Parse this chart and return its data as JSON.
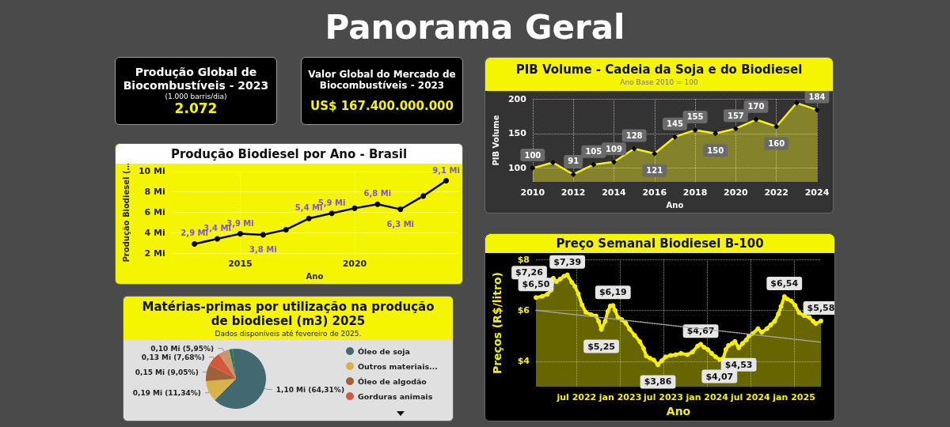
{
  "chart_data": [
    {
      "type": "other",
      "title": "Panorama Geral"
    },
    {
      "type": "other",
      "title": "Produção Global de Biocombustíveis - 2023",
      "subtitle": "(1.000 barris/dia)",
      "annotations": [
        "2.072"
      ]
    },
    {
      "type": "other",
      "title": "Valor Global do Mercado de Biocombustíveis - 2023",
      "annotations": [
        "US$ 167.400.000.000"
      ]
    },
    {
      "type": "area",
      "title": "PIB Volume - Cadeia da Soja e do Biodiesel",
      "subtitle": "Ano Base 2010 = 100",
      "xlabel": "Ano",
      "ylabel": "PIB Volume",
      "x": [
        2010,
        2011,
        2012,
        2013,
        2014,
        2015,
        2016,
        2017,
        2018,
        2019,
        2020,
        2021,
        2022,
        2023,
        2024
      ],
      "xlim": [
        2010,
        2024
      ],
      "xticks": [
        2010,
        2012,
        2014,
        2016,
        2018,
        2020,
        2022,
        2024
      ],
      "ylim": [
        80,
        200
      ],
      "yticks": [
        100,
        150,
        200
      ],
      "grid": true,
      "marker": "diamond",
      "series": [
        {
          "color": "#f5f020",
          "values": [
            100,
            108,
            91,
            105,
            109,
            128,
            121,
            145,
            155,
            150,
            157,
            170,
            160,
            194,
            184
          ],
          "value_labels": [
            "100",
            null,
            "91",
            "105",
            "109",
            "128",
            "121",
            "145",
            "155",
            "150",
            "157",
            "170",
            "160",
            null,
            "184"
          ]
        }
      ]
    },
    {
      "type": "line",
      "title": "Produção Biodiesel por Ano - Brasil",
      "xlabel": "Ano",
      "ylabel": "Produção Biodiesel (…",
      "x": [
        2013,
        2014,
        2015,
        2016,
        2017,
        2018,
        2019,
        2020,
        2021,
        2022,
        2023,
        2024
      ],
      "xlim": [
        2012,
        2024.5
      ],
      "xticks": [
        2015,
        2020
      ],
      "ylim": [
        2,
        10
      ],
      "yticks": [
        {
          "value": 2,
          "label": "2 Mi"
        },
        {
          "value": 4,
          "label": "4 Mi"
        },
        {
          "value": 6,
          "label": "6 Mi"
        },
        {
          "value": 8,
          "label": "8 Mi"
        },
        {
          "value": 10,
          "label": "10 Mi"
        }
      ],
      "grid": true,
      "marker": "circle",
      "series": [
        {
          "color": "#000000",
          "values": [
            2.9,
            3.4,
            3.9,
            3.8,
            4.3,
            5.4,
            5.9,
            6.4,
            6.8,
            6.3,
            7.6,
            9.1
          ],
          "value_labels": [
            "2,9 Mi",
            "3,4 Mi",
            "3,9 Mi",
            "3,8 Mi",
            null,
            "5,4 Mi",
            "5,9 Mi",
            null,
            "6,8 Mi",
            "6,3 Mi",
            null,
            "9,1 Mi"
          ]
        }
      ]
    },
    {
      "type": "pie",
      "title": "Matérias-primas por utilização na produção de biodiesel (m3) 2025",
      "subtitle": "Dados disponíveis até fevereiro de 2025.",
      "legend": "right",
      "categories": [
        "Óleo de soja",
        "Outros materiais...",
        "Óleo de algodão",
        "Gorduras animais",
        null,
        null
      ],
      "values": [
        64.31,
        11.34,
        9.05,
        7.68,
        5.95,
        1.67
      ],
      "colors": [
        "#426870",
        "#d8b24a",
        "#a0603a",
        "#d4583c",
        "#c9966a",
        "#1a7a5a"
      ],
      "value_labels": [
        "1,10 Mi (64,31%)",
        "0,19 Mi (11,34%)",
        "0,15 Mi (9,05%)",
        "0,13 Mi (7,68%)",
        "0,10 Mi (5,95%)",
        null
      ]
    },
    {
      "type": "area",
      "title": "Preço Semanal Biodiesel B-100",
      "xlabel": "Ano",
      "ylabel": "Preços (R$/litro)",
      "xlim": [
        "2022-01-11",
        "2025-04-24"
      ],
      "xticks": [
        {
          "value": "2022-07-01",
          "label": "jul 2022"
        },
        {
          "value": "2023-01-01",
          "label": "jan 2023"
        },
        {
          "value": "2023-07-01",
          "label": "jul 2023"
        },
        {
          "value": "2024-01-01",
          "label": "jan 2024"
        },
        {
          "value": "2024-07-01",
          "label": "jul 2024"
        },
        {
          "value": "2025-01-01",
          "label": "jan 2025"
        }
      ],
      "ylim": [
        3,
        8
      ],
      "yticks": [
        {
          "value": 4,
          "label": "$4"
        },
        {
          "value": 6,
          "label": "$6"
        },
        {
          "value": 8,
          "label": "$8"
        }
      ],
      "grid": true,
      "marker": "circle",
      "series": [
        {
          "color": "#f5f000",
          "x": [
            "2022-01-11",
            "2022-02-07",
            "2022-02-28",
            "2022-03-16",
            "2022-03-25",
            "2022-04-07",
            "2022-04-23",
            "2022-05-09",
            "2022-05-23",
            "2022-06-11",
            "2022-06-24",
            "2022-07-08",
            "2022-07-24",
            "2022-08-09",
            "2022-08-31",
            "2022-09-21",
            "2022-10-02",
            "2022-10-13",
            "2022-10-29",
            "2022-11-09",
            "2022-11-20",
            "2022-12-01",
            "2022-12-11",
            "2022-12-22",
            "2023-01-07",
            "2023-01-24",
            "2023-02-09",
            "2023-03-02",
            "2023-03-24",
            "2023-04-09",
            "2023-04-20",
            "2023-05-06",
            "2023-05-22",
            "2023-06-08",
            "2023-06-24",
            "2023-07-10",
            "2023-08-01",
            "2023-08-22",
            "2023-09-13",
            "2023-10-10",
            "2023-10-31",
            "2023-11-22",
            "2023-12-05",
            "2023-12-19",
            "2024-01-04",
            "2024-01-20",
            "2024-02-06",
            "2024-02-22",
            "2024-03-09",
            "2024-03-20",
            "2024-03-31",
            "2024-04-16",
            "2024-04-27",
            "2024-05-13",
            "2024-05-29",
            "2024-06-14",
            "2024-06-25",
            "2024-07-11",
            "2024-08-02",
            "2024-08-18",
            "2024-09-09",
            "2024-09-25",
            "2024-10-11",
            "2024-10-27",
            "2024-11-07",
            "2024-11-21",
            "2024-12-04",
            "2024-12-20",
            "2025-01-05",
            "2025-01-22",
            "2025-02-12",
            "2025-03-06",
            "2025-03-22",
            "2025-04-02",
            "2025-04-24"
          ],
          "values": [
            6.5,
            6.55,
            6.63,
            6.79,
            7.26,
            7.13,
            7.23,
            7.34,
            7.39,
            7.1,
            6.94,
            6.65,
            6.21,
            5.92,
            5.83,
            5.78,
            5.57,
            5.25,
            5.57,
            5.96,
            6.17,
            6.19,
            5.99,
            5.72,
            5.64,
            5.5,
            5.26,
            5.02,
            4.77,
            4.5,
            4.21,
            4.12,
            4.05,
            3.86,
            4.02,
            4.17,
            4.23,
            4.26,
            4.31,
            4.26,
            4.36,
            4.6,
            4.67,
            4.55,
            4.46,
            4.31,
            4.17,
            4.07,
            4.12,
            4.46,
            4.62,
            4.7,
            4.78,
            4.53,
            4.7,
            4.84,
            4.99,
            5.09,
            5.28,
            5.14,
            5.28,
            5.43,
            5.57,
            5.86,
            6.15,
            6.54,
            6.44,
            6.37,
            6.2,
            5.91,
            5.79,
            5.72,
            5.57,
            5.48,
            5.58
          ],
          "value_labels": [
            "$6,50",
            null,
            null,
            null,
            "$7,26",
            null,
            null,
            null,
            "$7,39",
            null,
            null,
            null,
            null,
            null,
            null,
            null,
            null,
            "$5,25",
            null,
            null,
            null,
            "$6,19",
            null,
            null,
            null,
            null,
            null,
            null,
            null,
            null,
            null,
            null,
            null,
            "$3,86",
            null,
            null,
            null,
            null,
            null,
            null,
            null,
            null,
            "$4,67",
            null,
            null,
            null,
            null,
            "$4,07",
            null,
            null,
            null,
            null,
            null,
            "$4,53",
            null,
            null,
            null,
            null,
            null,
            null,
            null,
            null,
            null,
            null,
            null,
            "$6,54",
            null,
            null,
            null,
            null,
            null,
            null,
            null,
            null,
            "$5,58"
          ]
        },
        {
          "type": "line",
          "color": "#aaaaaa",
          "marker": "none",
          "line_style": "dotted",
          "x": [
            "2022-01-11",
            "2025-04-24"
          ],
          "values": [
            6.0,
            4.75
          ]
        }
      ]
    }
  ]
}
